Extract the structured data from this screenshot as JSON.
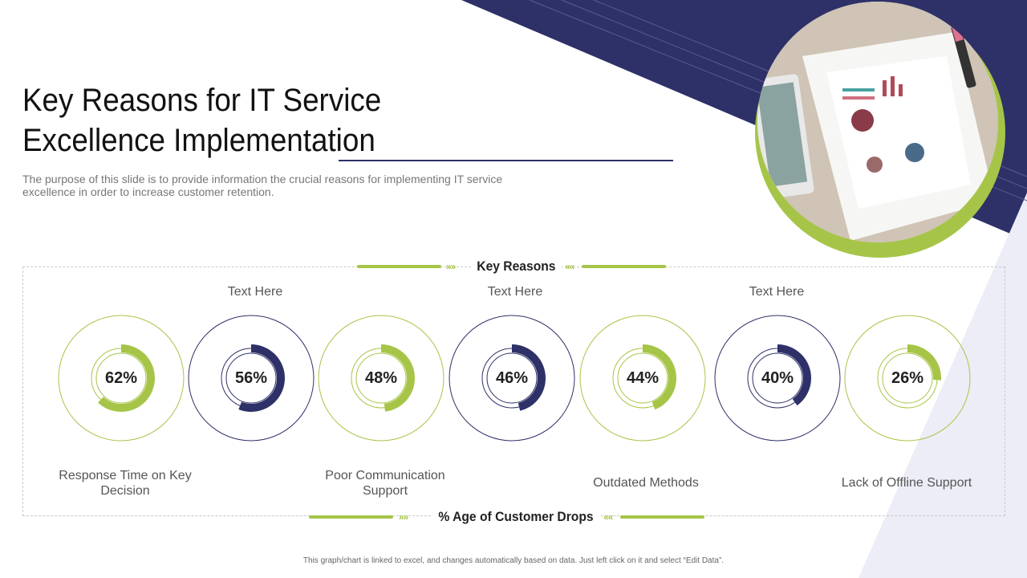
{
  "slide": {
    "title_line1": "Key Reasons for IT Service",
    "title_line2": "Excellence Implementation",
    "subtitle": "The purpose of this slide is to provide information the crucial reasons for implementing IT service excellence in order to increase customer retention.",
    "section_header": "Key Reasons",
    "bottom_header": "% Age of Customer Drops",
    "footer": "This graph/chart is linked to excel, and changes automatically based on data. Just left click on it and select “Edit Data”.",
    "text_notes": [
      "Text Here",
      "Text Here",
      "Text Here"
    ],
    "category_labels": [
      [
        "Response Time on Key",
        "Decision"
      ],
      [
        "Poor Communication",
        "Support"
      ],
      [
        "Outdated Methods"
      ],
      [
        "Lack of Offline Support"
      ]
    ],
    "photo_icon": "business-charts-photo"
  },
  "colors": {
    "navy": "#2e3068",
    "green": "#a6c548",
    "pale": "#ecedf6"
  },
  "chart_data": {
    "type": "donut",
    "values": [
      62,
      56,
      48,
      46,
      44,
      40,
      26
    ],
    "labels": [
      "62%",
      "56%",
      "48%",
      "46%",
      "44%",
      "40%",
      "26%"
    ],
    "ylim": [
      0,
      100
    ]
  }
}
